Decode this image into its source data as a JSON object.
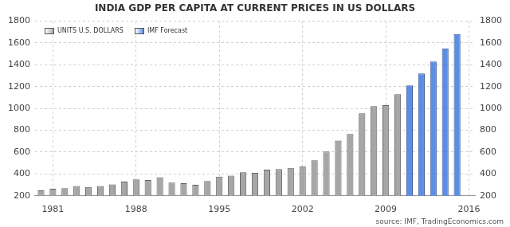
{
  "chart_data": {
    "type": "bar",
    "title": "INDIA GDP PER CAPITA AT CURRENT PRICES IN US DOLLARS",
    "source": "source: IMF, TradingEconomics.com",
    "categories": [
      null,
      "1981",
      null,
      null,
      null,
      null,
      null,
      null,
      "1988",
      null,
      null,
      null,
      null,
      null,
      null,
      "1995",
      null,
      null,
      null,
      null,
      null,
      null,
      "2002",
      null,
      null,
      null,
      null,
      null,
      null,
      "2009",
      null,
      null,
      null,
      null,
      null,
      null,
      "2016"
    ],
    "series": [
      {
        "name": "UNITS U.S. DOLLARS",
        "color": "#a6a6a6",
        "values": [
          250,
          265,
          270,
          290,
          280,
          290,
          305,
          330,
          350,
          345,
          370,
          320,
          315,
          300,
          335,
          375,
          385,
          415,
          410,
          440,
          445,
          455,
          470,
          525,
          605,
          705,
          765,
          955,
          1020,
          1030,
          1130,
          null,
          null,
          null,
          null,
          null,
          null
        ]
      },
      {
        "name": "IMF Forecast",
        "color": "#5b8ee6",
        "values": [
          null,
          null,
          null,
          null,
          null,
          null,
          null,
          null,
          null,
          null,
          null,
          null,
          null,
          null,
          null,
          null,
          null,
          null,
          null,
          null,
          null,
          null,
          null,
          null,
          null,
          null,
          null,
          null,
          null,
          null,
          null,
          1210,
          1320,
          1430,
          1550,
          1680,
          null
        ]
      }
    ],
    "ylim": [
      200,
      1800
    ],
    "yticks": [
      200,
      400,
      600,
      800,
      1000,
      1200,
      1400,
      1600,
      1800
    ],
    "y2lim": [
      200,
      1800
    ],
    "y2ticks": [
      200,
      400,
      600,
      800,
      1000,
      1200,
      1400,
      1600,
      1800
    ],
    "grid": true,
    "legend": "upper left"
  }
}
